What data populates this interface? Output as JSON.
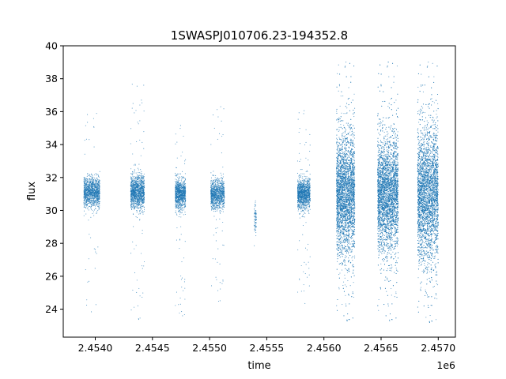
{
  "chart_data": {
    "type": "scatter",
    "title": "1SWASPJ010706.23-194352.8",
    "xlabel": "time",
    "ylabel": "flux",
    "x_offset_label": "1e6",
    "xlim": [
      2.45372,
      2.45715
    ],
    "ylim": [
      22.3,
      40.0
    ],
    "x_ticks": [
      2.454,
      2.4545,
      2.455,
      2.4555,
      2.456,
      2.4565,
      2.457
    ],
    "x_tick_labels": [
      "2.4540",
      "2.4545",
      "2.4550",
      "2.4555",
      "2.4560",
      "2.4565",
      "2.4570"
    ],
    "y_ticks": [
      24,
      26,
      28,
      30,
      32,
      34,
      36,
      38,
      40
    ],
    "y_tick_labels": [
      "24",
      "26",
      "28",
      "30",
      "32",
      "34",
      "36",
      "38",
      "40"
    ],
    "grid": false,
    "legend": "none",
    "marker_color": "#1f77b4",
    "clusters": [
      {
        "x_start": 2.4539,
        "x_end": 2.45404,
        "center": 31.1,
        "spread": 0.45,
        "min": 23.8,
        "max": 36.2,
        "count": 1200
      },
      {
        "x_start": 2.45431,
        "x_end": 2.45443,
        "center": 31.1,
        "spread": 0.5,
        "min": 23.2,
        "max": 38.0,
        "count": 1300
      },
      {
        "x_start": 2.4547,
        "x_end": 2.45479,
        "center": 31.0,
        "spread": 0.45,
        "min": 23.4,
        "max": 35.3,
        "count": 1000
      },
      {
        "x_start": 2.45501,
        "x_end": 2.45513,
        "center": 31.0,
        "spread": 0.45,
        "min": 24.3,
        "max": 36.5,
        "count": 1000
      },
      {
        "x_start": 2.45539,
        "x_end": 2.45541,
        "center": 29.5,
        "spread": 0.5,
        "min": 27.7,
        "max": 30.8,
        "count": 80
      },
      {
        "x_start": 2.45577,
        "x_end": 2.45588,
        "center": 31.0,
        "spread": 0.45,
        "min": 24.2,
        "max": 36.2,
        "count": 1200
      },
      {
        "x_start": 2.45611,
        "x_end": 2.45627,
        "center": 31.0,
        "spread": 1.8,
        "min": 23.1,
        "max": 39.2,
        "count": 4200
      },
      {
        "x_start": 2.45647,
        "x_end": 2.45665,
        "center": 31.0,
        "spread": 1.7,
        "min": 23.1,
        "max": 39.2,
        "count": 4500
      },
      {
        "x_start": 2.45682,
        "x_end": 2.457,
        "center": 31.0,
        "spread": 2.0,
        "min": 23.0,
        "max": 39.2,
        "count": 4500
      }
    ]
  }
}
